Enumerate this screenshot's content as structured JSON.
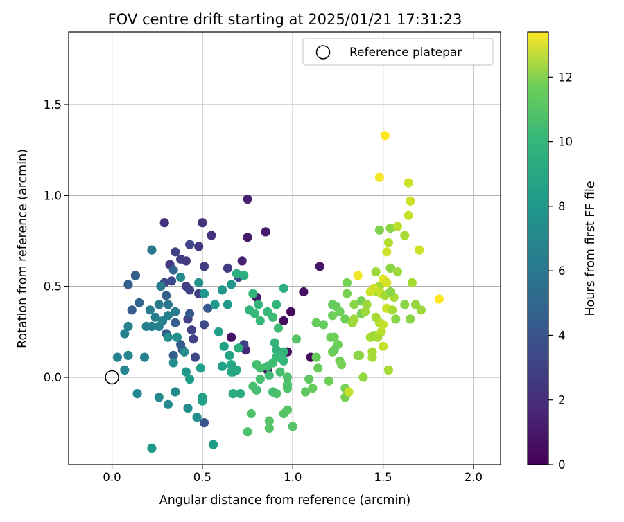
{
  "chart_data": {
    "type": "scatter",
    "title": "FOV centre drift starting at 2025/01/21 17:31:23",
    "xlabel": "Angular distance from reference (arcmin)",
    "ylabel": "Rotation from reference (arcmin)",
    "xlim": [
      -0.24,
      2.15
    ],
    "ylim": [
      -0.48,
      1.9
    ],
    "xticks": [
      0.0,
      0.5,
      1.0,
      1.5,
      2.0
    ],
    "xtick_labels": [
      "0.0",
      "0.5",
      "1.0",
      "1.5",
      "2.0"
    ],
    "yticks": [
      0.0,
      0.5,
      1.0,
      1.5
    ],
    "ytick_labels": [
      "0.0",
      "0.5",
      "1.0",
      "1.5"
    ],
    "grid": true,
    "legend": {
      "position": "top-right",
      "entries": [
        {
          "label": "Reference platepar",
          "marker": "open-circle"
        }
      ]
    },
    "reference_point": {
      "x": 0.0,
      "y": 0.0
    },
    "colorbar": {
      "label": "Hours from first FF file",
      "range": [
        0,
        13.4
      ],
      "ticks": [
        0,
        2,
        4,
        6,
        8,
        10,
        12
      ],
      "tick_labels": [
        "0",
        "2",
        "4",
        "6",
        "8",
        "10",
        "12"
      ],
      "colormap": "viridis"
    },
    "points": [
      {
        "x": 0.75,
        "y": 0.98,
        "c": 1.2
      },
      {
        "x": 0.75,
        "y": 0.77,
        "c": 1.0
      },
      {
        "x": 0.85,
        "y": 0.8,
        "c": 1.0
      },
      {
        "x": 0.72,
        "y": 0.64,
        "c": 1.2
      },
      {
        "x": 0.66,
        "y": 0.22,
        "c": 0.6
      },
      {
        "x": 0.95,
        "y": 0.31,
        "c": 0.4
      },
      {
        "x": 0.99,
        "y": 0.36,
        "c": 0.3
      },
      {
        "x": 1.06,
        "y": 0.47,
        "c": 0.6
      },
      {
        "x": 1.15,
        "y": 0.61,
        "c": 0.8
      },
      {
        "x": 1.1,
        "y": 0.11,
        "c": 0.2
      },
      {
        "x": 0.97,
        "y": 0.14,
        "c": 0.6
      },
      {
        "x": 0.86,
        "y": 0.04,
        "c": 0.8
      },
      {
        "x": 0.8,
        "y": 0.44,
        "c": 1.0
      },
      {
        "x": 0.74,
        "y": 0.15,
        "c": 1.4
      },
      {
        "x": 0.5,
        "y": 0.85,
        "c": 2.0
      },
      {
        "x": 0.55,
        "y": 0.78,
        "c": 2.0
      },
      {
        "x": 0.48,
        "y": 0.72,
        "c": 2.2
      },
      {
        "x": 0.43,
        "y": 0.73,
        "c": 2.8
      },
      {
        "x": 0.29,
        "y": 0.85,
        "c": 2.0
      },
      {
        "x": 0.35,
        "y": 0.69,
        "c": 2.5
      },
      {
        "x": 0.38,
        "y": 0.65,
        "c": 2.5
      },
      {
        "x": 0.41,
        "y": 0.64,
        "c": 2.3
      },
      {
        "x": 0.32,
        "y": 0.62,
        "c": 2.3
      },
      {
        "x": 0.51,
        "y": 0.61,
        "c": 2.4
      },
      {
        "x": 0.64,
        "y": 0.6,
        "c": 2.4
      },
      {
        "x": 0.33,
        "y": 0.53,
        "c": 3.0
      },
      {
        "x": 0.29,
        "y": 0.52,
        "c": 3.0
      },
      {
        "x": 0.41,
        "y": 0.5,
        "c": 2.6
      },
      {
        "x": 0.43,
        "y": 0.48,
        "c": 2.6
      },
      {
        "x": 0.48,
        "y": 0.46,
        "c": 2.6
      },
      {
        "x": 0.42,
        "y": 0.32,
        "c": 2.6
      },
      {
        "x": 0.44,
        "y": 0.26,
        "c": 2.6
      },
      {
        "x": 0.45,
        "y": 0.21,
        "c": 2.6
      },
      {
        "x": 0.51,
        "y": 0.29,
        "c": 3.0
      },
      {
        "x": 0.46,
        "y": 0.11,
        "c": 3.0
      },
      {
        "x": 0.51,
        "y": -0.25,
        "c": 3.5
      },
      {
        "x": 0.7,
        "y": 0.55,
        "c": 3.0
      },
      {
        "x": 0.73,
        "y": 0.18,
        "c": 2.5
      },
      {
        "x": 0.13,
        "y": 0.56,
        "c": 4.0
      },
      {
        "x": 0.09,
        "y": 0.51,
        "c": 4.0
      },
      {
        "x": 0.11,
        "y": 0.37,
        "c": 4.0
      },
      {
        "x": 0.15,
        "y": 0.41,
        "c": 4.2
      },
      {
        "x": 0.3,
        "y": 0.45,
        "c": 4.2
      },
      {
        "x": 0.34,
        "y": 0.59,
        "c": 4.2
      },
      {
        "x": 0.43,
        "y": 0.35,
        "c": 3.8
      },
      {
        "x": 0.53,
        "y": 0.38,
        "c": 3.8
      },
      {
        "x": 0.35,
        "y": 0.3,
        "c": 4.0
      },
      {
        "x": 0.39,
        "y": 0.15,
        "c": 3.8
      },
      {
        "x": 0.38,
        "y": 0.18,
        "c": 4.0
      },
      {
        "x": 0.3,
        "y": 0.24,
        "c": 3.8
      },
      {
        "x": 0.34,
        "y": 0.12,
        "c": 4.0
      },
      {
        "x": 0.22,
        "y": 0.7,
        "c": 5.4
      },
      {
        "x": 0.27,
        "y": 0.5,
        "c": 5.6
      },
      {
        "x": 0.31,
        "y": 0.4,
        "c": 5.4
      },
      {
        "x": 0.26,
        "y": 0.4,
        "c": 5.6
      },
      {
        "x": 0.21,
        "y": 0.37,
        "c": 5.6
      },
      {
        "x": 0.24,
        "y": 0.33,
        "c": 5.8
      },
      {
        "x": 0.19,
        "y": 0.28,
        "c": 5.8
      },
      {
        "x": 0.22,
        "y": 0.28,
        "c": 5.8
      },
      {
        "x": 0.26,
        "y": 0.28,
        "c": 6.0
      },
      {
        "x": 0.28,
        "y": 0.31,
        "c": 6.0
      },
      {
        "x": 0.31,
        "y": 0.34,
        "c": 5.8
      },
      {
        "x": 0.35,
        "y": 0.36,
        "c": 5.6
      },
      {
        "x": 0.09,
        "y": 0.28,
        "c": 6.0
      },
      {
        "x": 0.07,
        "y": 0.24,
        "c": 6.0
      },
      {
        "x": 0.03,
        "y": 0.11,
        "c": 6.0
      },
      {
        "x": 0.09,
        "y": 0.12,
        "c": 6.2
      },
      {
        "x": 0.07,
        "y": 0.04,
        "c": 6.2
      },
      {
        "x": 0.18,
        "y": 0.11,
        "c": 6.0
      },
      {
        "x": 0.14,
        "y": -0.09,
        "c": 6.2
      },
      {
        "x": 0.26,
        "y": -0.11,
        "c": 6.4
      },
      {
        "x": 0.31,
        "y": -0.15,
        "c": 6.4
      },
      {
        "x": 0.35,
        "y": -0.08,
        "c": 6.4
      },
      {
        "x": 0.42,
        "y": -0.17,
        "c": 6.6
      },
      {
        "x": 0.47,
        "y": -0.22,
        "c": 6.6
      },
      {
        "x": 0.31,
        "y": 0.22,
        "c": 6.6
      },
      {
        "x": 0.34,
        "y": 0.08,
        "c": 6.6
      },
      {
        "x": 0.36,
        "y": 0.22,
        "c": 6.6
      },
      {
        "x": 0.4,
        "y": 0.14,
        "c": 6.6
      },
      {
        "x": 0.38,
        "y": 0.55,
        "c": 6.4
      },
      {
        "x": 0.48,
        "y": 0.52,
        "c": 6.8
      },
      {
        "x": 0.51,
        "y": 0.46,
        "c": 7.0
      },
      {
        "x": 0.61,
        "y": 0.48,
        "c": 7.0
      },
      {
        "x": 0.66,
        "y": 0.51,
        "c": 7.0
      },
      {
        "x": 0.57,
        "y": 0.4,
        "c": 7.2
      },
      {
        "x": 0.64,
        "y": 0.4,
        "c": 7.2
      },
      {
        "x": 0.22,
        "y": -0.39,
        "c": 7.2
      },
      {
        "x": 0.56,
        "y": -0.37,
        "c": 7.4
      },
      {
        "x": 0.41,
        "y": 0.03,
        "c": 7.2
      },
      {
        "x": 0.43,
        "y": -0.01,
        "c": 7.4
      },
      {
        "x": 0.49,
        "y": 0.05,
        "c": 7.6
      },
      {
        "x": 0.5,
        "y": -0.11,
        "c": 7.6
      },
      {
        "x": 0.5,
        "y": -0.13,
        "c": 7.6
      },
      {
        "x": 0.59,
        "y": 0.25,
        "c": 7.6
      },
      {
        "x": 0.62,
        "y": 0.17,
        "c": 7.6
      },
      {
        "x": 0.61,
        "y": 0.06,
        "c": 7.6
      },
      {
        "x": 0.65,
        "y": 0.12,
        "c": 7.8
      },
      {
        "x": 0.66,
        "y": 0.07,
        "c": 8.0
      },
      {
        "x": 0.66,
        "y": 0.03,
        "c": 8.0
      },
      {
        "x": 0.67,
        "y": 0.03,
        "c": 8.0
      },
      {
        "x": 0.69,
        "y": 0.04,
        "c": 8.0
      },
      {
        "x": 0.67,
        "y": -0.09,
        "c": 8.2
      },
      {
        "x": 0.71,
        "y": -0.09,
        "c": 8.2
      },
      {
        "x": 0.69,
        "y": 0.57,
        "c": 8.4
      },
      {
        "x": 0.73,
        "y": 0.56,
        "c": 8.4
      },
      {
        "x": 0.7,
        "y": 0.16,
        "c": 8.4
      },
      {
        "x": 0.78,
        "y": 0.46,
        "c": 8.8
      },
      {
        "x": 0.81,
        "y": 0.4,
        "c": 8.8
      },
      {
        "x": 0.76,
        "y": 0.37,
        "c": 8.8
      },
      {
        "x": 0.79,
        "y": 0.35,
        "c": 9.0
      },
      {
        "x": 0.82,
        "y": 0.31,
        "c": 9.0
      },
      {
        "x": 0.86,
        "y": 0.36,
        "c": 9.0
      },
      {
        "x": 0.91,
        "y": 0.4,
        "c": 8.8
      },
      {
        "x": 0.95,
        "y": 0.49,
        "c": 8.4
      },
      {
        "x": 0.89,
        "y": 0.33,
        "c": 9.2
      },
      {
        "x": 0.92,
        "y": 0.27,
        "c": 9.2
      },
      {
        "x": 0.9,
        "y": 0.19,
        "c": 8.8
      },
      {
        "x": 0.91,
        "y": 0.15,
        "c": 8.6
      },
      {
        "x": 0.91,
        "y": 0.11,
        "c": 9.0
      },
      {
        "x": 0.95,
        "y": 0.14,
        "c": 8.8
      },
      {
        "x": 0.94,
        "y": 0.1,
        "c": 9.0
      },
      {
        "x": 0.95,
        "y": 0.09,
        "c": 9.0
      },
      {
        "x": 0.89,
        "y": 0.08,
        "c": 9.2
      },
      {
        "x": 0.86,
        "y": 0.06,
        "c": 9.2
      },
      {
        "x": 0.8,
        "y": 0.07,
        "c": 9.4
      },
      {
        "x": 0.82,
        "y": 0.05,
        "c": 9.4
      },
      {
        "x": 0.87,
        "y": 0.01,
        "c": 9.2
      },
      {
        "x": 0.82,
        "y": -0.01,
        "c": 9.4
      },
      {
        "x": 0.93,
        "y": 0.03,
        "c": 9.4
      },
      {
        "x": 0.97,
        "y": 0.0,
        "c": 9.6
      },
      {
        "x": 0.97,
        "y": -0.04,
        "c": 9.6
      },
      {
        "x": 0.97,
        "y": -0.06,
        "c": 9.6
      },
      {
        "x": 0.91,
        "y": -0.09,
        "c": 9.6
      },
      {
        "x": 0.89,
        "y": -0.08,
        "c": 9.4
      },
      {
        "x": 0.8,
        "y": -0.07,
        "c": 9.4
      },
      {
        "x": 0.78,
        "y": -0.05,
        "c": 9.4
      },
      {
        "x": 0.77,
        "y": -0.2,
        "c": 9.6
      },
      {
        "x": 0.75,
        "y": -0.3,
        "c": 9.6
      },
      {
        "x": 0.87,
        "y": -0.24,
        "c": 9.8
      },
      {
        "x": 0.87,
        "y": -0.28,
        "c": 9.8
      },
      {
        "x": 0.95,
        "y": -0.2,
        "c": 9.8
      },
      {
        "x": 0.97,
        "y": -0.18,
        "c": 9.8
      },
      {
        "x": 1.0,
        "y": -0.27,
        "c": 9.8
      },
      {
        "x": 1.02,
        "y": 0.21,
        "c": 9.8
      },
      {
        "x": 1.07,
        "y": -0.08,
        "c": 10.0
      },
      {
        "x": 1.09,
        "y": -0.01,
        "c": 10.0
      },
      {
        "x": 1.11,
        "y": -0.06,
        "c": 10.2
      },
      {
        "x": 1.13,
        "y": 0.11,
        "c": 10.2
      },
      {
        "x": 1.14,
        "y": 0.05,
        "c": 10.2
      },
      {
        "x": 1.13,
        "y": 0.3,
        "c": 10.2
      },
      {
        "x": 1.17,
        "y": 0.29,
        "c": 10.2
      },
      {
        "x": 1.21,
        "y": 0.22,
        "c": 10.4
      },
      {
        "x": 1.22,
        "y": 0.4,
        "c": 10.2
      },
      {
        "x": 1.24,
        "y": 0.39,
        "c": 10.2
      },
      {
        "x": 1.22,
        "y": 0.34,
        "c": 10.4
      },
      {
        "x": 1.26,
        "y": 0.36,
        "c": 10.4
      },
      {
        "x": 1.23,
        "y": 0.22,
        "c": 10.4
      },
      {
        "x": 1.25,
        "y": 0.18,
        "c": 10.4
      },
      {
        "x": 1.22,
        "y": 0.14,
        "c": 10.4
      },
      {
        "x": 1.23,
        "y": 0.15,
        "c": 10.2
      },
      {
        "x": 1.2,
        "y": -0.02,
        "c": 10.4
      },
      {
        "x": 1.26,
        "y": 0.09,
        "c": 10.6
      },
      {
        "x": 1.27,
        "y": 0.07,
        "c": 10.6
      },
      {
        "x": 1.29,
        "y": 0.32,
        "c": 10.4
      },
      {
        "x": 1.3,
        "y": 0.46,
        "c": 10.6
      },
      {
        "x": 1.3,
        "y": 0.52,
        "c": 10.6
      },
      {
        "x": 1.29,
        "y": -0.06,
        "c": 10.6
      },
      {
        "x": 1.29,
        "y": -0.11,
        "c": 10.6
      },
      {
        "x": 1.3,
        "y": -0.09,
        "c": 10.6
      },
      {
        "x": 1.31,
        "y": -0.08,
        "c": 12.2
      },
      {
        "x": 1.33,
        "y": 0.3,
        "c": 11.4
      },
      {
        "x": 1.34,
        "y": 0.32,
        "c": 11.4
      },
      {
        "x": 1.34,
        "y": 0.4,
        "c": 11.0
      },
      {
        "x": 1.36,
        "y": 0.12,
        "c": 11.0
      },
      {
        "x": 1.37,
        "y": 0.12,
        "c": 11.0
      },
      {
        "x": 1.38,
        "y": 0.35,
        "c": 10.6
      },
      {
        "x": 1.38,
        "y": 0.42,
        "c": 10.6
      },
      {
        "x": 1.39,
        "y": 0.0,
        "c": 11.2
      },
      {
        "x": 1.4,
        "y": 0.36,
        "c": 11.4
      },
      {
        "x": 1.41,
        "y": 0.4,
        "c": 11.4
      },
      {
        "x": 1.43,
        "y": 0.22,
        "c": 11.6
      },
      {
        "x": 1.44,
        "y": 0.14,
        "c": 11.6
      },
      {
        "x": 1.44,
        "y": 0.11,
        "c": 11.6
      },
      {
        "x": 1.45,
        "y": 0.23,
        "c": 11.4
      },
      {
        "x": 1.46,
        "y": 0.33,
        "c": 11.6
      },
      {
        "x": 1.47,
        "y": 0.22,
        "c": 11.6
      },
      {
        "x": 1.48,
        "y": 0.3,
        "c": 11.8
      },
      {
        "x": 1.49,
        "y": 0.25,
        "c": 12.0
      },
      {
        "x": 1.5,
        "y": 0.29,
        "c": 12.2
      },
      {
        "x": 1.5,
        "y": 0.17,
        "c": 12.2
      },
      {
        "x": 1.46,
        "y": 0.58,
        "c": 11.4
      },
      {
        "x": 1.47,
        "y": 0.47,
        "c": 11.4
      },
      {
        "x": 1.48,
        "y": 0.5,
        "c": 11.6
      },
      {
        "x": 1.43,
        "y": 0.47,
        "c": 12.4
      },
      {
        "x": 1.45,
        "y": 0.49,
        "c": 12.4
      },
      {
        "x": 1.49,
        "y": 0.46,
        "c": 12.4
      },
      {
        "x": 1.51,
        "y": 0.45,
        "c": 11.6
      },
      {
        "x": 1.5,
        "y": 0.54,
        "c": 12.8
      },
      {
        "x": 1.52,
        "y": 0.52,
        "c": 12.6
      },
      {
        "x": 1.52,
        "y": 0.38,
        "c": 12.4
      },
      {
        "x": 1.53,
        "y": 0.04,
        "c": 11.6
      },
      {
        "x": 1.55,
        "y": 0.37,
        "c": 11.6
      },
      {
        "x": 1.56,
        "y": 0.44,
        "c": 11.6
      },
      {
        "x": 1.54,
        "y": 0.47,
        "c": 11.0
      },
      {
        "x": 1.54,
        "y": 0.6,
        "c": 11.0
      },
      {
        "x": 1.57,
        "y": 0.32,
        "c": 11.0
      },
      {
        "x": 1.58,
        "y": 0.58,
        "c": 11.4
      },
      {
        "x": 1.62,
        "y": 0.4,
        "c": 11.0
      },
      {
        "x": 1.65,
        "y": 0.32,
        "c": 11.0
      },
      {
        "x": 1.66,
        "y": 0.52,
        "c": 11.6
      },
      {
        "x": 1.68,
        "y": 0.4,
        "c": 11.2
      },
      {
        "x": 1.71,
        "y": 0.37,
        "c": 11.4
      },
      {
        "x": 1.48,
        "y": 0.81,
        "c": 10.8
      },
      {
        "x": 1.54,
        "y": 0.82,
        "c": 11.0
      },
      {
        "x": 1.53,
        "y": 0.74,
        "c": 11.8
      },
      {
        "x": 1.52,
        "y": 0.69,
        "c": 12.4
      },
      {
        "x": 1.58,
        "y": 0.83,
        "c": 12.0
      },
      {
        "x": 1.62,
        "y": 0.78,
        "c": 11.6
      },
      {
        "x": 1.64,
        "y": 0.89,
        "c": 12.2
      },
      {
        "x": 1.64,
        "y": 1.07,
        "c": 12.4
      },
      {
        "x": 1.65,
        "y": 0.97,
        "c": 12.4
      },
      {
        "x": 1.7,
        "y": 0.7,
        "c": 12.4
      },
      {
        "x": 1.36,
        "y": 0.56,
        "c": 13.2
      },
      {
        "x": 1.48,
        "y": 1.1,
        "c": 13.2
      },
      {
        "x": 1.51,
        "y": 1.33,
        "c": 13.4
      },
      {
        "x": 1.81,
        "y": 0.43,
        "c": 13.4
      }
    ]
  }
}
